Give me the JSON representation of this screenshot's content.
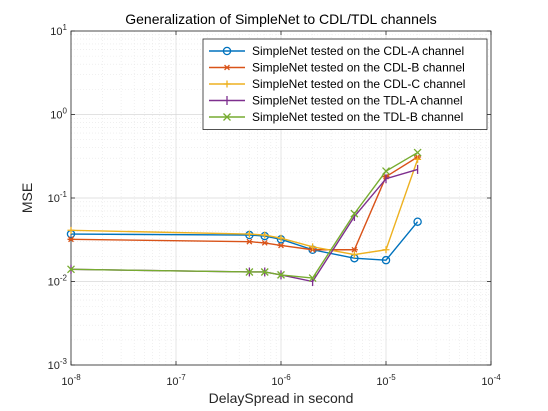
{
  "chart_data": {
    "type": "line",
    "title": "Generalization of SimpleNet to CDL/TDL channels",
    "xlabel": "DelaySpread in second",
    "ylabel": "MSE",
    "x_scale": "log",
    "y_scale": "log",
    "xlim": [
      1e-08,
      0.0001
    ],
    "ylim": [
      0.001,
      10
    ],
    "x_ticks": [
      {
        "value": 1e-08,
        "base": "10",
        "exp": "-8"
      },
      {
        "value": 1e-07,
        "base": "10",
        "exp": "-7"
      },
      {
        "value": 1e-06,
        "base": "10",
        "exp": "-6"
      },
      {
        "value": 1e-05,
        "base": "10",
        "exp": "-5"
      },
      {
        "value": 0.0001,
        "base": "10",
        "exp": "-4"
      }
    ],
    "y_ticks": [
      {
        "value": 0.001,
        "base": "10",
        "exp": "-3"
      },
      {
        "value": 0.01,
        "base": "10",
        "exp": "-2"
      },
      {
        "value": 0.1,
        "base": "10",
        "exp": "-1"
      },
      {
        "value": 1,
        "base": "10",
        "exp": "0"
      },
      {
        "value": 10,
        "base": "10",
        "exp": "1"
      }
    ],
    "grid": true,
    "minor_grid": true,
    "legend_position": "top-right",
    "x": [
      1e-08,
      5e-07,
      7e-07,
      1e-06,
      2e-06,
      5e-06,
      1e-05,
      2e-05
    ],
    "series": [
      {
        "name": "SimpleNet tested on the CDL-A channel",
        "color": "#0072BD",
        "marker": "circle",
        "values": [
          0.037,
          0.036,
          0.035,
          0.032,
          0.024,
          0.019,
          0.018,
          0.052
        ]
      },
      {
        "name": "SimpleNet tested on the CDL-B channel",
        "color": "#D95319",
        "marker": "asterisk",
        "values": [
          0.032,
          0.03,
          0.029,
          0.027,
          0.024,
          0.024,
          0.18,
          0.31
        ]
      },
      {
        "name": "SimpleNet tested on the CDL-C channel",
        "color": "#EDB120",
        "marker": "plus",
        "values": [
          0.041,
          0.037,
          0.036,
          0.033,
          0.026,
          0.021,
          0.024,
          0.29
        ]
      },
      {
        "name": "SimpleNet tested on the TDL-A channel",
        "color": "#7E2F8E",
        "marker": "vbar",
        "values": [
          0.014,
          0.013,
          0.013,
          0.012,
          0.01,
          0.06,
          0.17,
          0.22
        ]
      },
      {
        "name": "SimpleNet tested on the TDL-B channel",
        "color": "#77AC30",
        "marker": "x",
        "values": [
          0.014,
          0.013,
          0.013,
          0.012,
          0.011,
          0.065,
          0.21,
          0.35
        ]
      }
    ]
  }
}
